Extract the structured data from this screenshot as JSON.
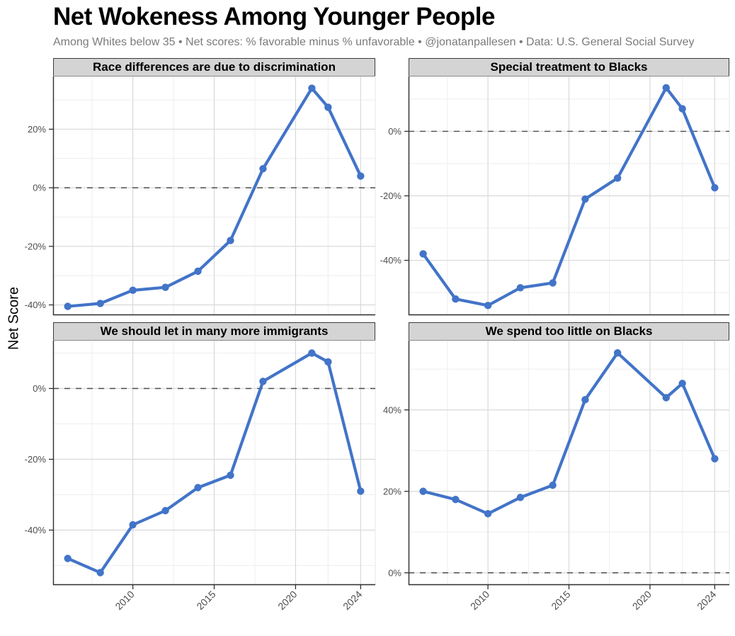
{
  "header": {
    "title": "Net Wokeness Among Younger People",
    "subtitle": "Among Whites below 35 • Net scores: % favorable minus % unfavorable • @jonatanpallesen • Data: U.S. General Social Survey"
  },
  "axes": {
    "y_label": "Net Score",
    "xlim": [
      2005.1,
      2024.9
    ],
    "x_ticks": [
      2010,
      2015,
      2020,
      2024
    ],
    "x_minor": [
      2007.5,
      2012.5,
      2017.5,
      2022
    ],
    "tick_suffix": "%",
    "grid": "on",
    "legend": "none"
  },
  "style": {
    "line_color": "#4274c8",
    "point_color": "#4274c8",
    "strip_fill": "#d4d4d4",
    "strip_border": "#3a3a3a",
    "grid_major": "#d9d9d9",
    "grid_minor": "#eeeeee",
    "panel_border": "#e7e7e7",
    "axis_line": "#2f2f2f",
    "zero_line": "#4d4d4d",
    "tick_label_color": "#4d4d4d"
  },
  "chart_data": [
    {
      "type": "line",
      "title": "Race differences are due to discrimination",
      "x": [
        2006,
        2008,
        2010,
        2012,
        2014,
        2016,
        2018,
        2021,
        2022,
        2024
      ],
      "values": [
        -40.5,
        -39.5,
        -35,
        -34,
        -28.5,
        -18,
        6.5,
        34,
        27.5,
        4
      ],
      "ylim": [
        -43.5,
        38
      ],
      "y_ticks": [
        20,
        0,
        -20,
        -40
      ],
      "zero_line_at": 0
    },
    {
      "type": "line",
      "title": "Special treatment to Blacks",
      "x": [
        2006,
        2008,
        2010,
        2012,
        2014,
        2016,
        2018,
        2021,
        2022,
        2024
      ],
      "values": [
        -38,
        -52,
        -54,
        -48.5,
        -47,
        -21,
        -14.5,
        13.5,
        7,
        -17.5
      ],
      "ylim": [
        -57,
        17
      ],
      "y_ticks": [
        0,
        -20,
        -40
      ],
      "zero_line_at": 0
    },
    {
      "type": "line",
      "title": "We should let in many more immigrants",
      "x": [
        2006,
        2008,
        2010,
        2012,
        2014,
        2016,
        2018,
        2021,
        2022,
        2024
      ],
      "values": [
        -48,
        -52,
        -38.5,
        -34.5,
        -28,
        -24.5,
        2,
        10,
        7.5,
        -29
      ],
      "ylim": [
        -55.5,
        13.5
      ],
      "y_ticks": [
        0,
        -20,
        -40
      ],
      "zero_line_at": 0
    },
    {
      "type": "line",
      "title": "We spend too little on Blacks",
      "x": [
        2006,
        2008,
        2010,
        2012,
        2014,
        2016,
        2018,
        2021,
        2022,
        2024
      ],
      "values": [
        20,
        18,
        14.5,
        18.5,
        21.5,
        42.5,
        54,
        43,
        46.5,
        28
      ],
      "ylim": [
        -3,
        57
      ],
      "y_ticks": [
        40,
        20,
        0
      ],
      "zero_line_at": 0
    }
  ]
}
